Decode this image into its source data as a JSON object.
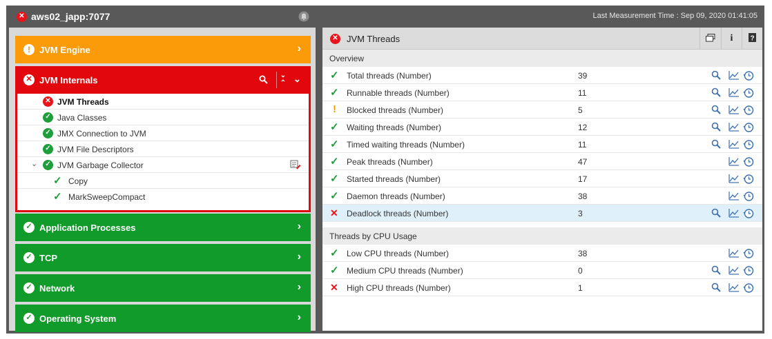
{
  "header": {
    "host": "aws02_japp:7077",
    "measurement": "Last Measurement Time : Sep 09, 2020 01:41:05"
  },
  "sidebar": {
    "jvm_engine": "JVM Engine",
    "jvm_internals": "JVM Internals",
    "tree": [
      {
        "label": "JVM Threads",
        "status": "error",
        "bold": true
      },
      {
        "label": "Java Classes",
        "status": "ok"
      },
      {
        "label": "JMX Connection to JVM",
        "status": "ok"
      },
      {
        "label": "JVM File Descriptors",
        "status": "ok"
      },
      {
        "label": "JVM Garbage Collector",
        "status": "ok",
        "expanded": true
      },
      {
        "label": "Copy",
        "status": "ok-check"
      },
      {
        "label": "MarkSweepCompact",
        "status": "ok-check"
      }
    ],
    "application_processes": "Application Processes",
    "tcp": "TCP",
    "network": "Network",
    "operating_system": "Operating System"
  },
  "main": {
    "title": "JVM Threads",
    "sections": {
      "overview": "Overview",
      "cpu": "Threads by CPU Usage"
    },
    "overview_rows": [
      {
        "name": "Total threads (Number)",
        "value": "39",
        "status": "ok",
        "search": true
      },
      {
        "name": "Runnable threads (Number)",
        "value": "11",
        "status": "ok",
        "search": true
      },
      {
        "name": "Blocked threads (Number)",
        "value": "5",
        "status": "warn",
        "search": true
      },
      {
        "name": "Waiting threads (Number)",
        "value": "12",
        "status": "ok",
        "search": true
      },
      {
        "name": "Timed waiting threads (Number)",
        "value": "11",
        "status": "ok",
        "search": true
      },
      {
        "name": "Peak threads (Number)",
        "value": "47",
        "status": "ok",
        "search": false
      },
      {
        "name": "Started threads (Number)",
        "value": "17",
        "status": "ok",
        "search": false
      },
      {
        "name": "Daemon threads (Number)",
        "value": "38",
        "status": "ok",
        "search": false
      },
      {
        "name": "Deadlock threads (Number)",
        "value": "3",
        "status": "bad",
        "search": true,
        "highlight": true
      }
    ],
    "cpu_rows": [
      {
        "name": "Low CPU threads (Number)",
        "value": "38",
        "status": "ok",
        "search": false
      },
      {
        "name": "Medium CPU threads (Number)",
        "value": "0",
        "status": "ok",
        "search": true
      },
      {
        "name": "High CPU threads (Number)",
        "value": "1",
        "status": "bad",
        "search": true
      }
    ]
  },
  "colors": {
    "orange": "#fb9b0a",
    "green": "#119b2b",
    "red": "#e2070c",
    "frame": "#595959"
  }
}
